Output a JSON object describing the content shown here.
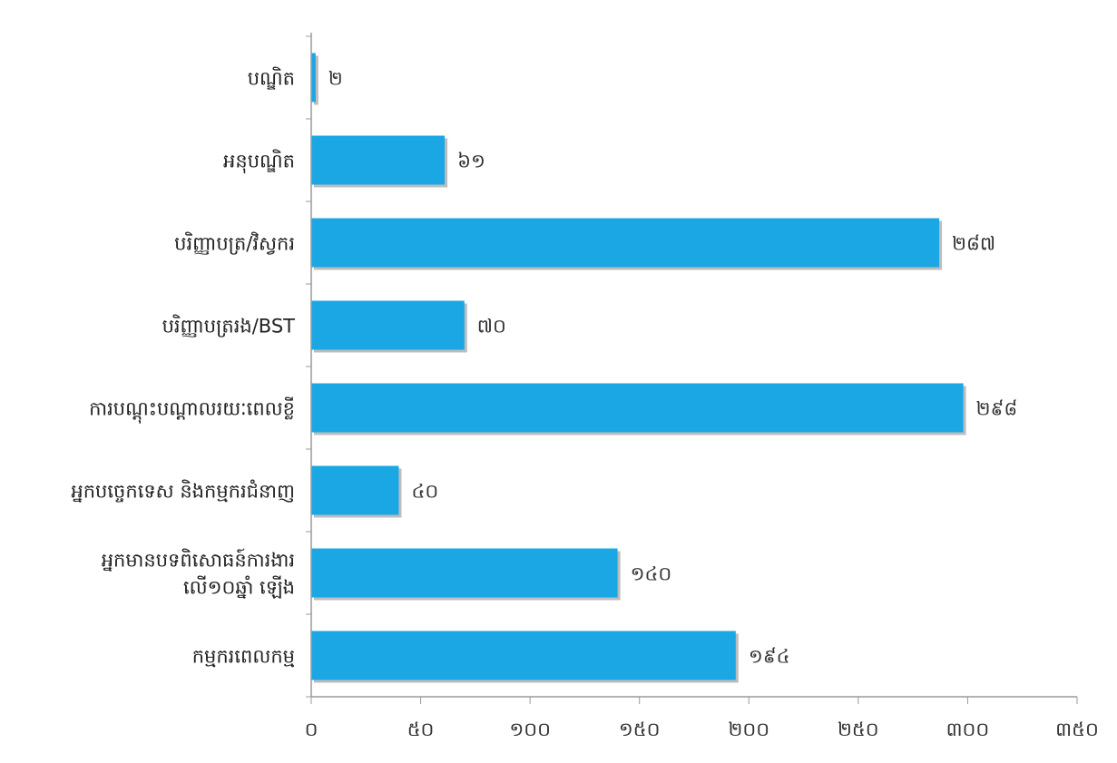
{
  "chart_data": {
    "type": "bar",
    "orientation": "horizontal",
    "categories": [
      "បណ្ឌិត",
      "អនុបណ្ឌិត",
      "បរិញ្ញាបត្រ/វិស្វករ",
      "បរិញ្ញាបត្ររង/BST",
      "ការបណ្តុះបណ្តាលរយៈពេលខ្លី",
      "អ្នកបច្ចេកទេស និងកម្មករជំនាញ",
      "អ្នកមានបទពិសោធន៍ការងារ លើ១០ឆ្នាំ ឡើង",
      "កម្មករពេលកម្ម"
    ],
    "category_lines": [
      [
        "បណ្ឌិត"
      ],
      [
        "អនុបណ្ឌិត"
      ],
      [
        "បរិញ្ញាបត្រ/វិស្វករ"
      ],
      [
        "បរិញ្ញាបត្ររង/BST"
      ],
      [
        "ការបណ្តុះបណ្តាលរយៈពេលខ្លី"
      ],
      [
        "អ្នកបច្ចេកទេស និងកម្មករជំនាញ"
      ],
      [
        "អ្នកមានបទពិសោធន៍ការងារ",
        "លើ១០ឆ្នាំ ឡើង"
      ],
      [
        "កម្មករពេលកម្ម"
      ]
    ],
    "values": [
      2,
      61,
      287,
      70,
      298,
      40,
      140,
      194
    ],
    "value_labels": [
      "២",
      "៦១",
      "២៨៧",
      "៧០",
      "២៩៨",
      "៤០",
      "១៤០",
      "១៩៤"
    ],
    "xlim": [
      0,
      350
    ],
    "xticks": [
      0,
      50,
      100,
      150,
      200,
      250,
      300,
      350
    ],
    "xtick_labels": [
      "០",
      "៥០",
      "១០០",
      "១៥០",
      "២០០",
      "២៥០",
      "៣០០",
      "៣៥០"
    ],
    "title": "",
    "xlabel": "",
    "ylabel": "",
    "grid": false,
    "legend": false,
    "bar_color": "#1aa7e4",
    "bar_shadow_color": "#bdbdbd",
    "axis_color": "#9a9a9a"
  }
}
